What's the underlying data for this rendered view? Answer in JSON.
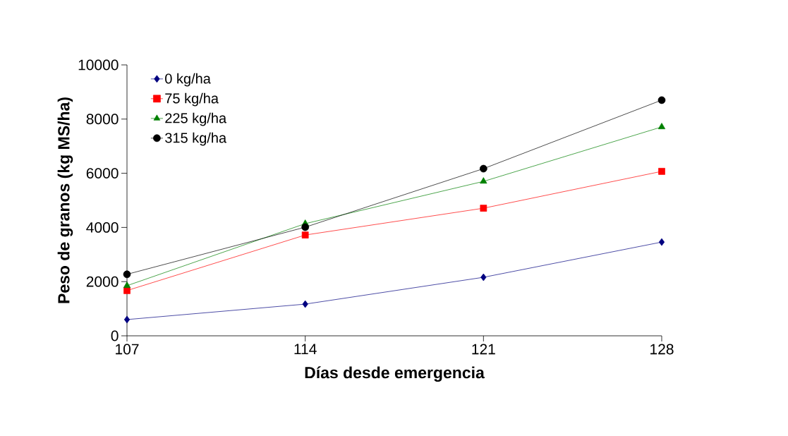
{
  "chart_data": {
    "type": "line",
    "xlabel": "Días desde emergencia",
    "ylabel": "Peso de granos (kg MS/ha)",
    "x": [
      107,
      114,
      121,
      128
    ],
    "xlim": [
      107,
      128
    ],
    "xticks": [
      107,
      114,
      121,
      128
    ],
    "ylim": [
      0,
      10000
    ],
    "yticks": [
      0,
      2000,
      4000,
      6000,
      8000,
      10000
    ],
    "grid": false,
    "legend": "top left",
    "line_style": "solid",
    "series": [
      {
        "name": "0 kg/ha",
        "color": "#000080",
        "marker": "diamond",
        "values": [
          600,
          1170,
          2160,
          3460
        ]
      },
      {
        "name": "75 kg/ha",
        "color": "#ff0000",
        "marker": "square",
        "values": [
          1670,
          3720,
          4710,
          6070
        ]
      },
      {
        "name": "225 kg/ha",
        "color": "#008000",
        "marker": "triangle",
        "values": [
          1850,
          4140,
          5700,
          7710
        ]
      },
      {
        "name": "315 kg/ha",
        "color": "#000000",
        "marker": "circle",
        "values": [
          2270,
          4010,
          6170,
          8700
        ]
      }
    ]
  }
}
